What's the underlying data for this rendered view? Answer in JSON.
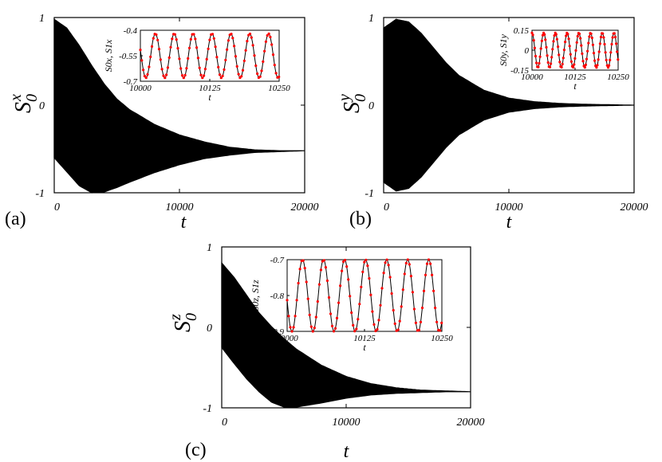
{
  "chart_data": [
    {
      "type": "area",
      "panel_label": "(a)",
      "ylabel": "S",
      "ylabel_sub": "0",
      "ylabel_sup": "x",
      "xlabel": "t",
      "xlim": [
        0,
        20000
      ],
      "ylim": [
        -1,
        1
      ],
      "xticks": [
        "0",
        "10000",
        "20000"
      ],
      "yticks": [
        "1",
        "0",
        "-1"
      ],
      "envelope": {
        "t": [
          0,
          1000,
          2000,
          3000,
          4000,
          5000,
          6000,
          8000,
          10000,
          12000,
          14000,
          16000,
          18000,
          20000
        ],
        "upper": [
          0.98,
          0.88,
          0.68,
          0.45,
          0.24,
          0.07,
          -0.05,
          -0.22,
          -0.34,
          -0.42,
          -0.48,
          -0.51,
          -0.52,
          -0.52
        ],
        "lower": [
          -0.6,
          -0.76,
          -0.92,
          -1.0,
          -0.99,
          -0.94,
          -0.88,
          -0.77,
          -0.68,
          -0.61,
          -0.57,
          -0.54,
          -0.53,
          -0.52
        ]
      },
      "inset": {
        "xlabel": "t",
        "ylabel": "S0x, S1x",
        "xlim": [
          10000,
          10250
        ],
        "ylim": [
          -0.7,
          -0.4
        ],
        "xticks": [
          "10000",
          "10125",
          "10250"
        ],
        "yticks": [
          "-0.4",
          "-0.55",
          "-0.7"
        ],
        "series": [
          {
            "amplitude": 0.13,
            "offset": -0.55,
            "period": 34,
            "phase": 1.3,
            "color": "#ff0000"
          }
        ]
      }
    },
    {
      "type": "area",
      "panel_label": "(b)",
      "ylabel": "S",
      "ylabel_sub": "0",
      "ylabel_sup": "y",
      "xlabel": "t",
      "xlim": [
        0,
        20000
      ],
      "ylim": [
        -1,
        1
      ],
      "xticks": [
        "0",
        "10000",
        "20000"
      ],
      "yticks": [
        "1",
        "0",
        "-1"
      ],
      "envelope": {
        "t": [
          0,
          1000,
          2000,
          3000,
          4000,
          5000,
          6000,
          8000,
          10000,
          12000,
          14000,
          16000,
          18000,
          20000
        ],
        "upper": [
          0.88,
          0.98,
          0.95,
          0.82,
          0.65,
          0.48,
          0.34,
          0.17,
          0.08,
          0.04,
          0.02,
          0.01,
          0.005,
          0.0
        ],
        "lower": [
          -0.88,
          -0.98,
          -0.95,
          -0.82,
          -0.65,
          -0.48,
          -0.34,
          -0.17,
          -0.08,
          -0.04,
          -0.02,
          -0.01,
          -0.005,
          0.0
        ]
      },
      "inset": {
        "xlabel": "t",
        "ylabel": "S0y, S1y",
        "xlim": [
          10000,
          10250
        ],
        "ylim": [
          -0.15,
          0.15
        ],
        "xticks": [
          "10000",
          "10125",
          "10250"
        ],
        "yticks": [
          "0.15",
          "0",
          "-0.15"
        ],
        "series": [
          {
            "amplitude": 0.13,
            "offset": 0.0,
            "period": 34,
            "phase": 0.0,
            "color": "#ff0000"
          }
        ]
      }
    },
    {
      "type": "area",
      "panel_label": "(c)",
      "ylabel": "S",
      "ylabel_sub": "0",
      "ylabel_sup": "z",
      "xlabel": "t",
      "xlim": [
        0,
        20000
      ],
      "ylim": [
        -1,
        1
      ],
      "xticks": [
        "0",
        "10000",
        "20000"
      ],
      "yticks": [
        "1",
        "0",
        "-1"
      ],
      "envelope": {
        "t": [
          0,
          1000,
          2000,
          3000,
          4000,
          5000,
          6000,
          8000,
          10000,
          12000,
          14000,
          16000,
          18000,
          20000
        ],
        "upper": [
          0.8,
          0.62,
          0.4,
          0.18,
          0.01,
          -0.14,
          -0.27,
          -0.47,
          -0.61,
          -0.7,
          -0.75,
          -0.78,
          -0.79,
          -0.8
        ],
        "lower": [
          -0.25,
          -0.45,
          -0.64,
          -0.8,
          -0.93,
          -0.99,
          -0.99,
          -0.94,
          -0.88,
          -0.84,
          -0.82,
          -0.81,
          -0.8,
          -0.8
        ]
      },
      "inset": {
        "xlabel": "t",
        "ylabel": "S0z, S1z",
        "xlim": [
          10000,
          10250
        ],
        "ylim": [
          -0.9,
          -0.7
        ],
        "xticks": [
          "10000",
          "10125",
          "10250"
        ],
        "yticks": [
          "-0.7",
          "-0.8",
          "-0.9"
        ],
        "series": [
          {
            "amplitude": 0.1,
            "offset": -0.8,
            "period": 34,
            "phase": 1.7,
            "color": "#ff0000"
          }
        ]
      }
    }
  ]
}
